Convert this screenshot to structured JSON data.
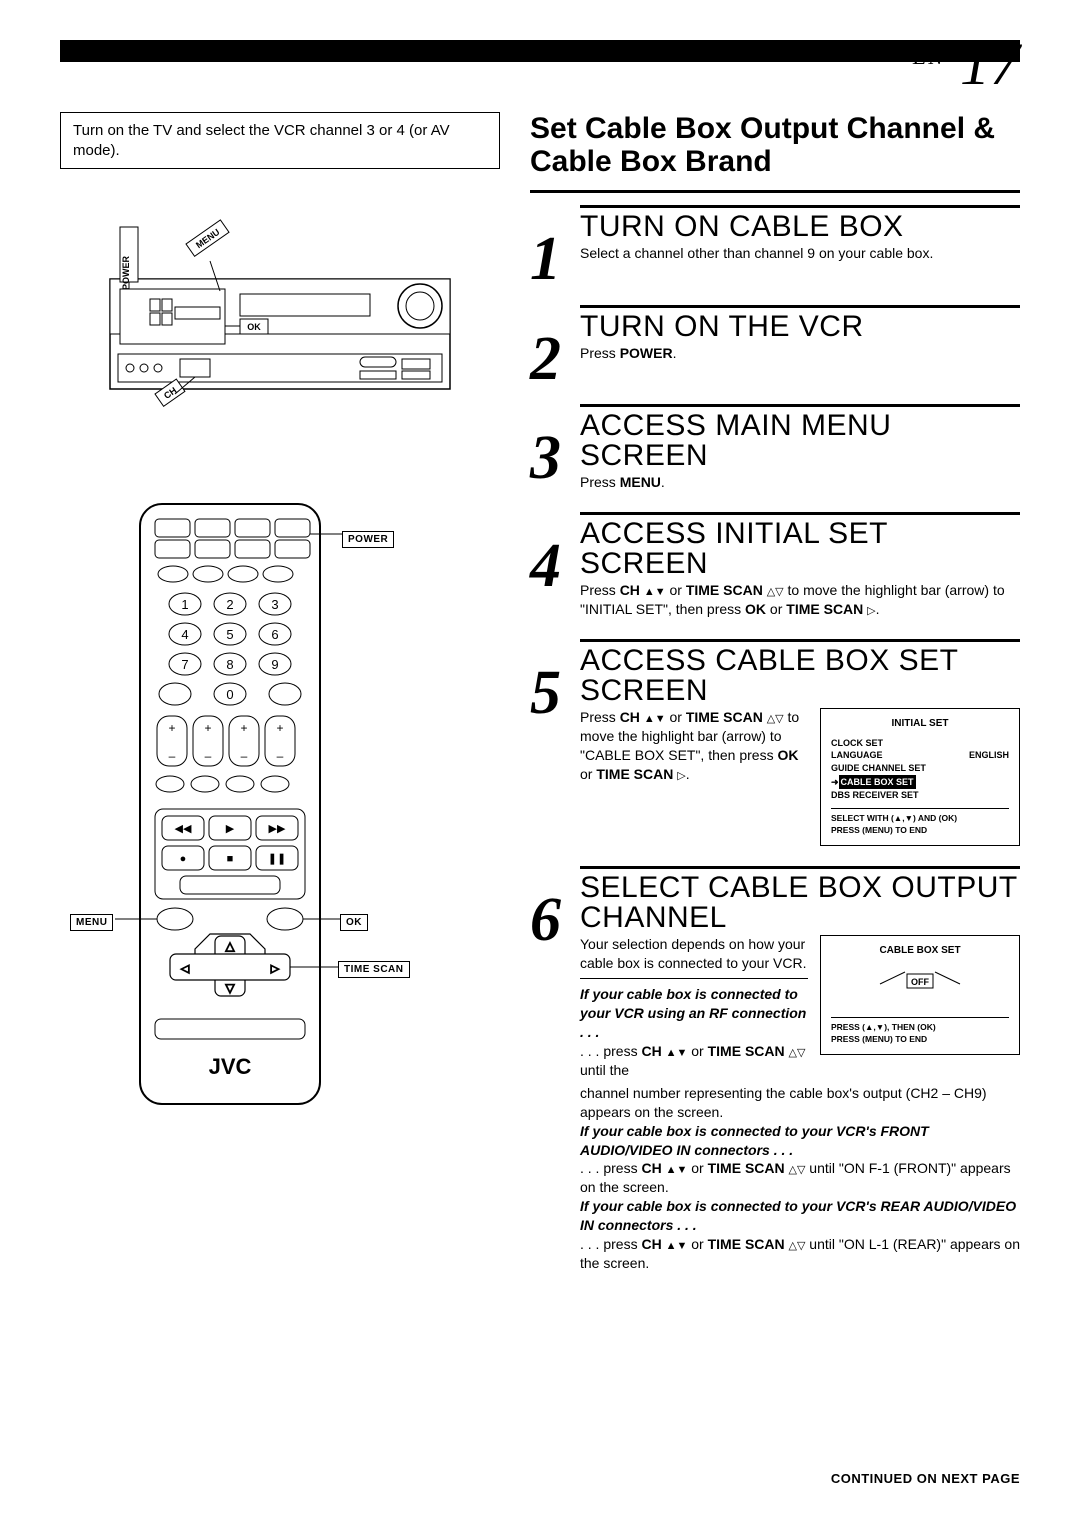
{
  "page_number_prefix": "EN",
  "page_number": "17",
  "intro_box": "Turn on the TV and select the VCR channel 3 or 4 (or AV mode).",
  "section_title": "Set Cable Box Output Channel & Cable Box Brand",
  "labels": {
    "power": "POWER",
    "menu": "MENU",
    "ok": "OK",
    "ch": "CH",
    "time_scan": "TIME SCAN",
    "brand": "JVC"
  },
  "steps": [
    {
      "num": "1",
      "heading": "TURN ON CABLE BOX",
      "body_html": "Select a channel other than channel 9 on your cable box."
    },
    {
      "num": "2",
      "heading": "TURN ON THE VCR",
      "body_html": "Press <b>POWER</b>."
    },
    {
      "num": "3",
      "heading": "ACCESS MAIN MENU SCREEN",
      "body_html": "Press <b>MENU</b>."
    },
    {
      "num": "4",
      "heading": "ACCESS INITIAL SET SCREEN",
      "body_html": "Press <b>CH</b> <span class='tri'>▲▼</span> or <b>TIME SCAN</b> <span class='tri'>△▽</span> to move the highlight bar (arrow) to \"INITIAL SET\", then press <b>OK</b> or <b>TIME SCAN</b> <span class='tri'>▷</span>."
    },
    {
      "num": "5",
      "heading": "ACCESS CABLE BOX SET SCREEN",
      "body_html": "Press <b>CH</b> <span class='tri'>▲▼</span> or <b>TIME SCAN</b> <span class='tri'>△▽</span> to move the highlight bar (arrow) to \"CABLE BOX SET\", then press <b>OK</b> or <b>TIME SCAN</b> <span class='tri'>▷</span>."
    },
    {
      "num": "6",
      "heading": "SELECT CABLE BOX OUTPUT CHANNEL",
      "body_html": "Your selection depends on how your cable box is connected to your VCR.",
      "extra_html": "<span class='biheader'>If your cable box is connected to your VCR using an RF connection . . .</span><br>. . . press <b>CH</b> <span class='tri'>▲▼</span> or <b>TIME SCAN</b> <span class='tri'>△▽</span> until the",
      "after_html": "channel number representing the cable box's output (CH2 – CH9) appears on the screen.<br><span class='biheader'>If your cable box is connected to your VCR's FRONT AUDIO/VIDEO IN connectors . . .</span><br>. . . press <b>CH</b> <span class='tri'>▲▼</span> or <b>TIME SCAN</b> <span class='tri'>△▽</span> until \"ON F-1 (FRONT)\" appears on the screen.<br><span class='biheader'>If your cable box is connected to your VCR's REAR AUDIO/VIDEO IN connectors . . .</span><br>. . . press <b>CH</b> <span class='tri'>▲▼</span> or <b>TIME SCAN</b> <span class='tri'>△▽</span> until \"ON L-1 (REAR)\" appears on the screen."
    }
  ],
  "osd1": {
    "title": "INITIAL SET",
    "lines": [
      "CLOCK SET",
      "LANGUAGE",
      "GUIDE CHANNEL SET",
      "CABLE BOX SET",
      "DBS RECEIVER SET"
    ],
    "lang_value": "ENGLISH",
    "highlight_index": 3,
    "footer1": "SELECT WITH (▲,▼) AND (OK)",
    "footer2": "PRESS (MENU) TO END"
  },
  "osd2": {
    "title": "CABLE BOX SET",
    "off": "OFF",
    "footer1": "PRESS (▲,▼), THEN (OK)",
    "footer2": "PRESS (MENU) TO END"
  },
  "continued": "CONTINUED ON NEXT PAGE"
}
